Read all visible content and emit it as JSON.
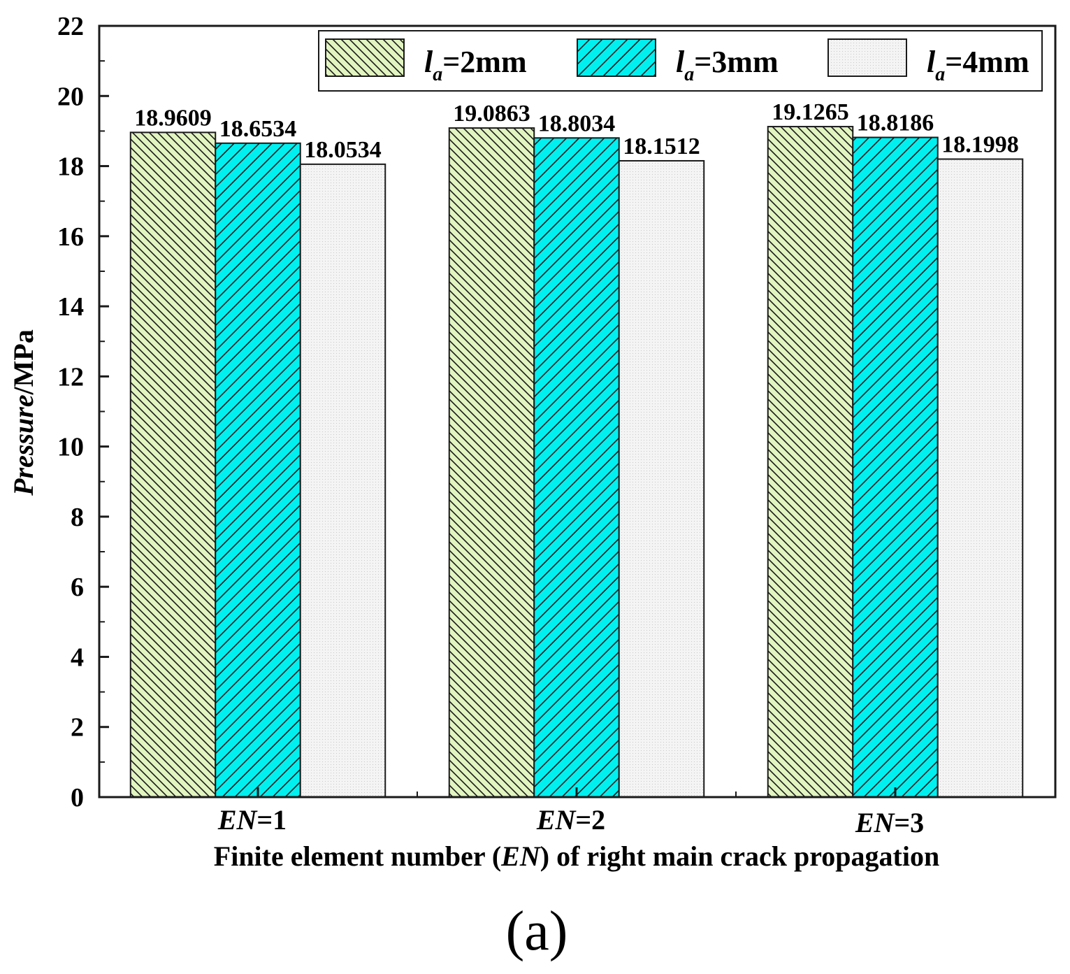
{
  "chart_data": {
    "type": "bar",
    "categories": [
      {
        "italic": "EN",
        "rest": "=1"
      },
      {
        "italic": "EN",
        "rest": "=2"
      },
      {
        "italic": "EN",
        "rest": "=3"
      }
    ],
    "series": [
      {
        "name_italic": "l",
        "name_sub": "a",
        "name_rest": "=2mm",
        "values": [
          18.9609,
          19.0863,
          19.1265
        ],
        "labels": [
          "18.9609",
          "19.0863",
          "19.1265"
        ],
        "color": "#e2f5c0",
        "pattern": "back-diagonal"
      },
      {
        "name_italic": "l",
        "name_sub": "a",
        "name_rest": "=3mm",
        "values": [
          18.6534,
          18.8034,
          18.8186
        ],
        "labels": [
          "18.6534",
          "18.8034",
          "18.8186"
        ],
        "color": "#00f0f0",
        "pattern": "forward-diagonal"
      },
      {
        "name_italic": "l",
        "name_sub": "a",
        "name_rest": "=4mm",
        "values": [
          18.0534,
          18.1512,
          18.1998
        ],
        "labels": [
          "18.0534",
          "18.1512",
          "18.1998"
        ],
        "color": "#f2f2f2",
        "pattern": "dots"
      }
    ],
    "ylim": [
      0,
      22
    ],
    "yticks": [
      "0",
      "2",
      "4",
      "6",
      "8",
      "10",
      "12",
      "14",
      "16",
      "18",
      "20",
      "22"
    ],
    "ylabel": {
      "italic": "Pressure",
      "rest": "/MPa"
    },
    "xlabel": {
      "pre": "Finite element number (",
      "italic": "EN",
      "post": ") of right main crack propagation"
    },
    "legend_position": "top-right",
    "grid": false
  },
  "panel_label": "(a)"
}
